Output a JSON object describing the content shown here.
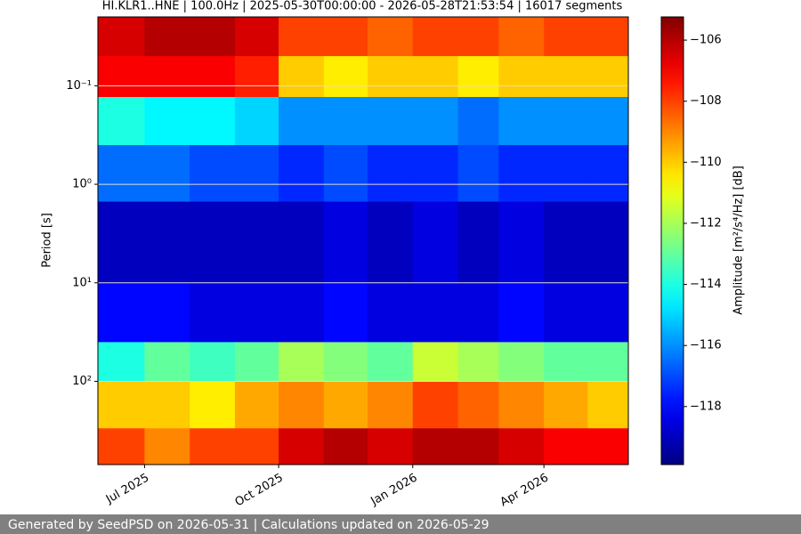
{
  "chart_data": {
    "type": "spectrogram",
    "title": "HI.KLR1..HNE | 100.0Hz | 2025-05-30T00:00:00 - 2026-05-28T21:53:54 | 16017 segments",
    "ylabel": "Period [s]",
    "colorbar_label": "Amplitude [m²/s⁴/Hz] [dB]",
    "footer": "Generated by SeedPSD on 2026-05-31 | Calculations updated on 2026-05-29",
    "xlim": [
      "2025-05-30T00:00:00",
      "2026-05-28T21:53:54"
    ],
    "xticks": [
      {
        "value": "2025-07-01T00:00:00",
        "label": "Jul 2025"
      },
      {
        "value": "2025-10-01T00:00:00",
        "label": "Oct 2025"
      },
      {
        "value": "2026-01-01T00:00:00",
        "label": "Jan 2026"
      },
      {
        "value": "2026-04-01T00:00:00",
        "label": "Apr 2026"
      }
    ],
    "ylim": [
      0.02,
      700
    ],
    "y_log": true,
    "y_inverted": true,
    "yticks": [
      {
        "value": 0.1,
        "label": "10⁻¹"
      },
      {
        "value": 1,
        "label": "10⁰"
      },
      {
        "value": 10,
        "label": "10¹"
      },
      {
        "value": 100,
        "label": "10²"
      }
    ],
    "grid": true,
    "colormap": "jet",
    "clim": [
      -119.9,
      -105.24
    ],
    "cticks": [
      {
        "value": -106,
        "label": "−106"
      },
      {
        "value": -108,
        "label": "−108"
      },
      {
        "value": -110,
        "label": "−110"
      },
      {
        "value": -112,
        "label": "−112"
      },
      {
        "value": -114,
        "label": "−114"
      },
      {
        "value": -116,
        "label": "−116"
      },
      {
        "value": -118,
        "label": "−118"
      }
    ],
    "time_starts": [
      "2025-05-30T00:00:00",
      "2025-07-01T00:00:00",
      "2025-08-01T00:00:00",
      "2025-09-01T00:00:00",
      "2025-10-01T00:00:00",
      "2025-11-01T00:00:00",
      "2025-12-01T00:00:00",
      "2026-01-01T00:00:00",
      "2026-02-01T00:00:00",
      "2026-03-01T00:00:00",
      "2026-04-01T00:00:00",
      "2026-05-01T00:00:00"
    ],
    "period_edges": [
      0.02,
      0.05,
      0.13,
      0.4,
      1.5,
      10,
      40,
      100,
      300,
      700
    ],
    "z": [
      [
        -106.5,
        -106,
        -106,
        -106.5,
        -108,
        -108,
        -108.5,
        -108,
        -108,
        -108.5,
        -108,
        -108
      ],
      [
        -107,
        -107,
        -107,
        -107.5,
        -110,
        -110.5,
        -110,
        -110,
        -110.5,
        -110,
        -110,
        -110
      ],
      [
        -114,
        -114.5,
        -114.5,
        -115,
        -116,
        -116,
        -116,
        -116,
        -116.5,
        -116,
        -116,
        -116
      ],
      [
        -116.5,
        -116.5,
        -117,
        -117,
        -117.5,
        -117,
        -117.5,
        -117.5,
        -117,
        -117.5,
        -117.5,
        -117.5
      ],
      [
        -119,
        -119,
        -119,
        -119,
        -119,
        -118.5,
        -119,
        -118.5,
        -119,
        -118.5,
        -119,
        -119
      ],
      [
        -118,
        -118,
        -118.5,
        -118.5,
        -118.5,
        -118,
        -118.5,
        -118.5,
        -118.5,
        -118,
        -118.5,
        -118.5
      ],
      [
        -114,
        -113,
        -113.5,
        -113,
        -112,
        -112.5,
        -113,
        -111.5,
        -112,
        -112.5,
        -113,
        -113
      ],
      [
        -110,
        -110,
        -110.5,
        -109.5,
        -109,
        -109.5,
        -109,
        -108,
        -108.5,
        -109,
        -109.5,
        -110
      ],
      [
        -108,
        -109,
        -108,
        -108,
        -106.5,
        -106,
        -106.5,
        -106,
        -106,
        -106.5,
        -107,
        -107
      ]
    ]
  }
}
